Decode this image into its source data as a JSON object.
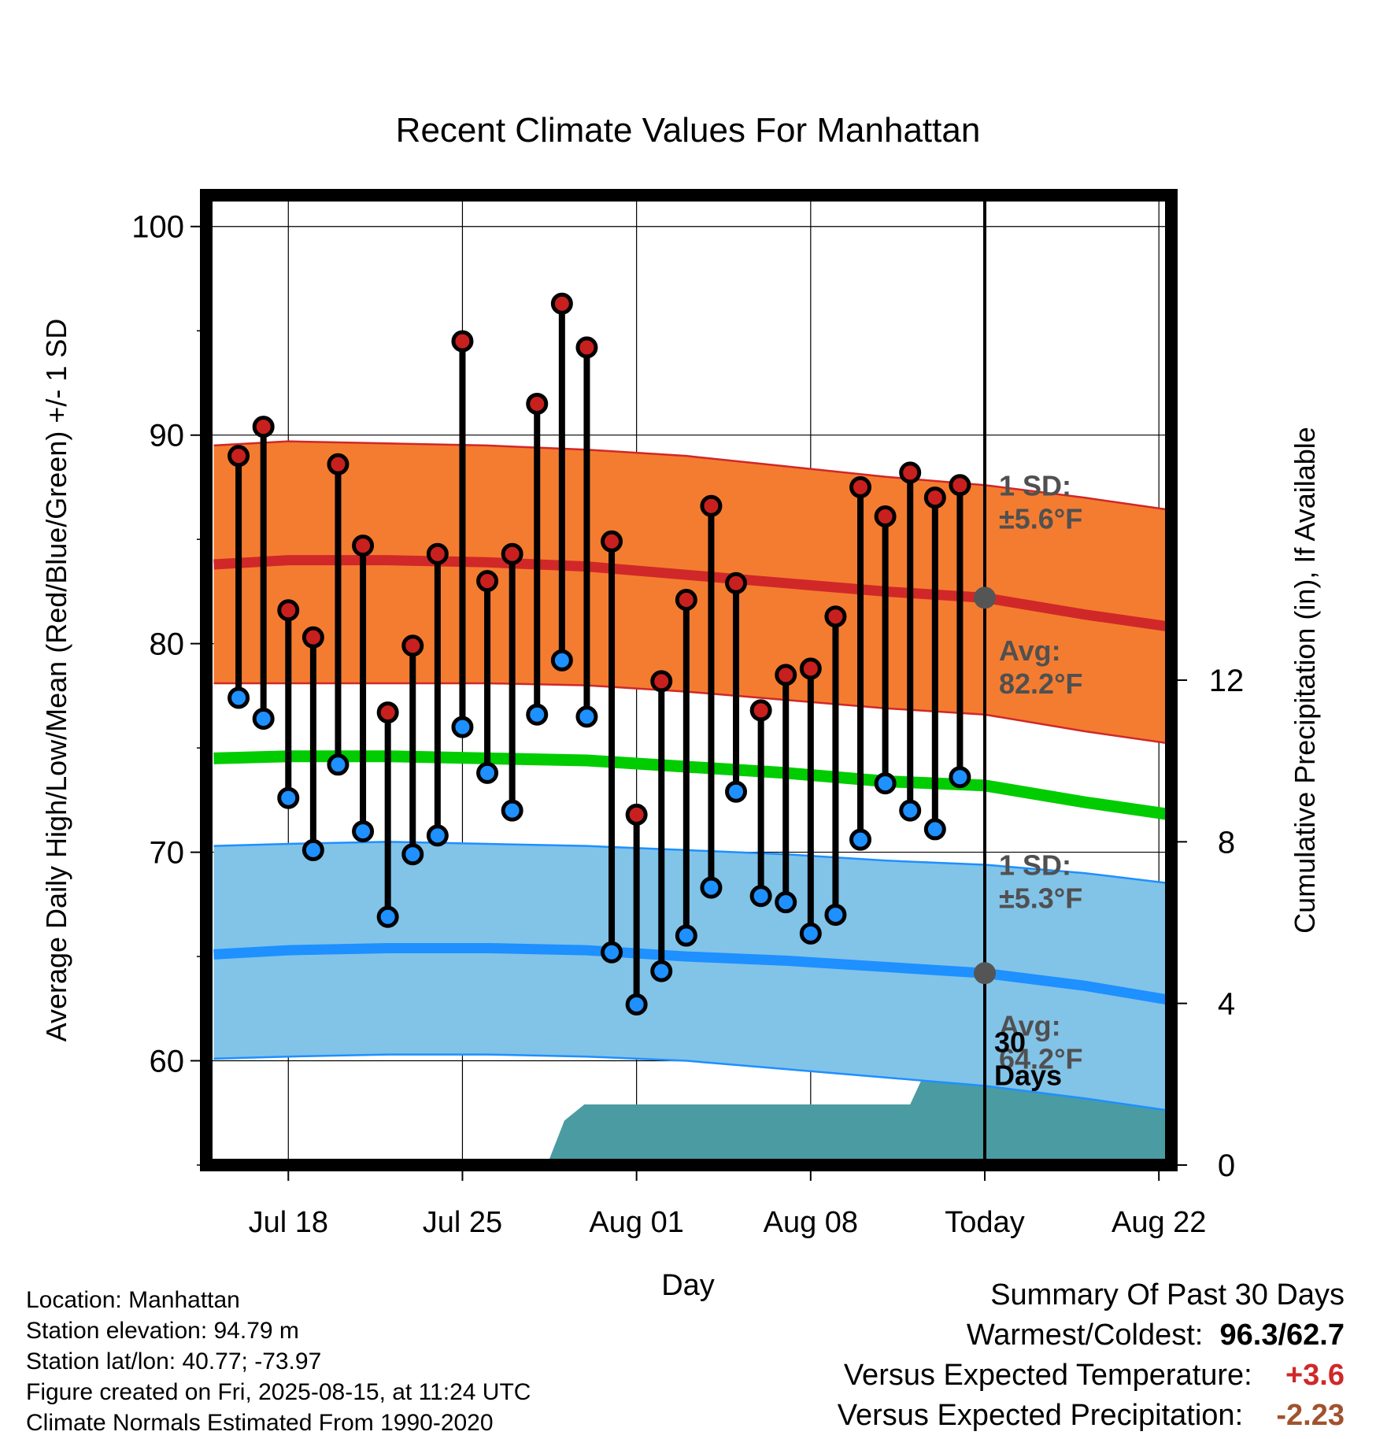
{
  "chart_data": {
    "type": "line",
    "title": "Recent Climate Values For Manhattan",
    "xlabel": "Day",
    "ylabel": "Average Daily High/Low/Mean (Red/Blue/Green) +/- 1 SD",
    "y2label": "Cumulative Precipitation (in), If Available",
    "ylim": [
      55,
      101.5
    ],
    "y2lim": [
      0,
      24
    ],
    "yticks": [
      "60",
      "70",
      "80",
      "90",
      "100"
    ],
    "y2ticks": [
      "0",
      "4",
      "8",
      "12"
    ],
    "xlim": [
      -3.3,
      35.5
    ],
    "xticks": [
      {
        "day": 0,
        "label": "Jul 18"
      },
      {
        "day": 7,
        "label": "Jul 25"
      },
      {
        "day": 14,
        "label": "Aug 01"
      },
      {
        "day": 21,
        "label": "Aug 08"
      },
      {
        "day": 28,
        "label": "Today"
      },
      {
        "day": 35,
        "label": "Aug 22"
      }
    ],
    "today_day": 28,
    "grid": true,
    "daily": {
      "days": [
        -2,
        -1,
        0,
        1,
        2,
        3,
        4,
        5,
        6,
        7,
        8,
        9,
        10,
        11,
        12,
        13,
        14,
        15,
        16,
        17,
        18,
        19,
        20,
        21,
        22,
        23,
        24,
        25,
        26,
        27
      ],
      "highs": [
        89.0,
        90.4,
        81.6,
        80.3,
        88.6,
        84.7,
        76.7,
        79.9,
        84.3,
        94.5,
        83.0,
        84.3,
        91.5,
        96.3,
        94.2,
        84.9,
        71.8,
        78.2,
        82.1,
        86.6,
        82.9,
        76.8,
        78.5,
        78.8,
        81.3,
        87.5,
        86.1,
        88.2,
        87.0,
        87.6
      ],
      "lows": [
        77.4,
        76.4,
        72.6,
        70.1,
        74.2,
        71.0,
        66.9,
        69.9,
        70.8,
        76.0,
        73.8,
        72.0,
        76.6,
        79.2,
        76.5,
        65.2,
        62.7,
        64.3,
        66.0,
        68.3,
        72.9,
        67.9,
        67.6,
        66.1,
        67.0,
        70.6,
        73.3,
        72.0,
        71.1,
        73.6
      ]
    },
    "normals": {
      "days": [
        -3,
        0,
        4,
        8,
        12,
        16,
        20,
        24,
        28,
        32,
        35.5
      ],
      "avg_high": [
        83.8,
        84.0,
        84.0,
        83.9,
        83.7,
        83.3,
        82.9,
        82.5,
        82.2,
        81.4,
        80.8
      ],
      "sd_high_top": [
        89.5,
        89.7,
        89.6,
        89.5,
        89.3,
        89.0,
        88.5,
        88.0,
        87.6,
        87.0,
        86.4
      ],
      "sd_high_bottom": [
        78.1,
        78.1,
        78.1,
        78.1,
        78.0,
        77.7,
        77.3,
        76.9,
        76.6,
        75.8,
        75.2
      ],
      "avg_mean": [
        74.5,
        74.6,
        74.6,
        74.5,
        74.4,
        74.1,
        73.8,
        73.4,
        73.2,
        72.4,
        71.8
      ],
      "avg_low": [
        65.1,
        65.3,
        65.4,
        65.4,
        65.3,
        65.0,
        64.8,
        64.5,
        64.2,
        63.6,
        62.9
      ],
      "sd_low_top": [
        70.3,
        70.4,
        70.5,
        70.4,
        70.3,
        70.1,
        69.9,
        69.6,
        69.4,
        69.0,
        68.5
      ],
      "sd_low_bottom": [
        60.1,
        60.2,
        60.3,
        60.3,
        60.2,
        60.0,
        59.6,
        59.2,
        58.8,
        58.2,
        57.6
      ]
    },
    "precip": {
      "days": [
        10.4,
        11.1,
        11.9,
        14.0,
        21.0,
        24.0,
        25.0,
        25.6,
        28.0,
        35.5
      ],
      "values": [
        0.0,
        1.1,
        1.5,
        1.5,
        1.5,
        1.5,
        1.5,
        2.3,
        2.3,
        2.3
      ]
    },
    "annotations": {
      "high_sd": [
        "1 SD:",
        "±5.6°F"
      ],
      "high_avg": [
        "Avg:",
        "82.2°F"
      ],
      "low_sd": [
        "1 SD:",
        "±5.3°F"
      ],
      "low_avg": [
        "Avg:",
        "64.2°F"
      ],
      "precip_days": [
        "30",
        "Days"
      ]
    },
    "colors": {
      "high_band": "#f47c30",
      "high_line": "#d02828",
      "low_band": "#82c3e8",
      "low_line": "#1e90ff",
      "mean_line": "#00cc00",
      "precip": "#4a9ca2",
      "high_dot": "#c8201e",
      "low_dot": "#1e90ff",
      "marker_gray": "#555555",
      "annotation_text": "#505050"
    }
  },
  "footer": {
    "location": "Location: Manhattan",
    "elevation": "Station elevation: 94.79 m",
    "latlon": "Station lat/lon: 40.77; -73.97",
    "created": "Figure created on Fri, 2025-08-15, at 11:24 UTC",
    "normals": "Climate Normals Estimated From 1990-2020"
  },
  "summary": {
    "title": "Summary Of Past 30 Days",
    "warmest_label": "Warmest/Coldest:",
    "warmest_value": "96.3",
    "coldest_value": "62.7",
    "temp_label": "Versus Expected Temperature:",
    "temp_value": "+3.6",
    "temp_color": "#d02828",
    "precip_label": "Versus Expected Precipitation:",
    "precip_value": "-2.23",
    "precip_color": "#a0522d"
  }
}
